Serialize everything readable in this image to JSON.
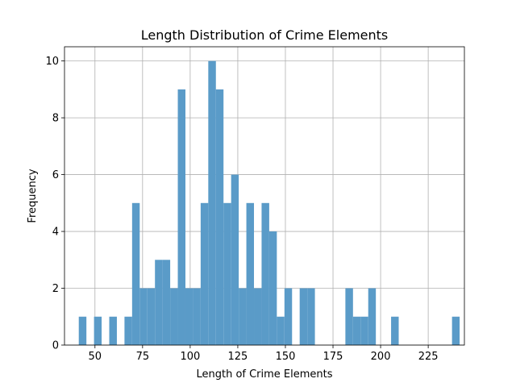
{
  "chart_data": {
    "type": "bar",
    "title": "Length Distribution of Crime Elements",
    "xlabel": "Length of Crime Elements",
    "ylabel": "Frequency",
    "xlim": [
      34,
      244
    ],
    "ylim": [
      0,
      10.5
    ],
    "xticks": [
      50,
      75,
      100,
      125,
      150,
      175,
      200,
      225
    ],
    "yticks": [
      0,
      2,
      4,
      6,
      8,
      10
    ],
    "grid": true,
    "bar_color": "#5a9bc8",
    "bin_width": 4,
    "bins": [
      {
        "x0": 41.5,
        "x1": 45.5,
        "count": 1
      },
      {
        "x0": 49.5,
        "x1": 53.5,
        "count": 1
      },
      {
        "x0": 57.5,
        "x1": 61.5,
        "count": 1
      },
      {
        "x0": 65.5,
        "x1": 69.5,
        "count": 1
      },
      {
        "x0": 69.5,
        "x1": 73.5,
        "count": 5
      },
      {
        "x0": 73.5,
        "x1": 77.5,
        "count": 2
      },
      {
        "x0": 77.5,
        "x1": 81.5,
        "count": 2
      },
      {
        "x0": 81.5,
        "x1": 85.5,
        "count": 3
      },
      {
        "x0": 85.5,
        "x1": 89.5,
        "count": 3
      },
      {
        "x0": 89.5,
        "x1": 93.5,
        "count": 2
      },
      {
        "x0": 93.5,
        "x1": 97.5,
        "count": 9
      },
      {
        "x0": 97.5,
        "x1": 101.5,
        "count": 2
      },
      {
        "x0": 101.5,
        "x1": 105.5,
        "count": 2
      },
      {
        "x0": 105.5,
        "x1": 109.5,
        "count": 5
      },
      {
        "x0": 109.5,
        "x1": 113.5,
        "count": 10
      },
      {
        "x0": 113.5,
        "x1": 117.5,
        "count": 9
      },
      {
        "x0": 117.5,
        "x1": 121.5,
        "count": 5
      },
      {
        "x0": 121.5,
        "x1": 125.5,
        "count": 6
      },
      {
        "x0": 125.5,
        "x1": 129.5,
        "count": 2
      },
      {
        "x0": 129.5,
        "x1": 133.5,
        "count": 5
      },
      {
        "x0": 133.5,
        "x1": 137.5,
        "count": 2
      },
      {
        "x0": 137.5,
        "x1": 141.5,
        "count": 5
      },
      {
        "x0": 141.5,
        "x1": 145.5,
        "count": 4
      },
      {
        "x0": 145.5,
        "x1": 149.5,
        "count": 1
      },
      {
        "x0": 149.5,
        "x1": 153.5,
        "count": 2
      },
      {
        "x0": 153.5,
        "x1": 157.5,
        "count": 0
      },
      {
        "x0": 157.5,
        "x1": 161.5,
        "count": 2
      },
      {
        "x0": 161.5,
        "x1": 165.5,
        "count": 2
      },
      {
        "x0": 181.5,
        "x1": 185.5,
        "count": 2
      },
      {
        "x0": 185.5,
        "x1": 189.5,
        "count": 1
      },
      {
        "x0": 189.5,
        "x1": 193.5,
        "count": 1
      },
      {
        "x0": 193.5,
        "x1": 197.5,
        "count": 2
      },
      {
        "x0": 205.5,
        "x1": 209.5,
        "count": 1
      },
      {
        "x0": 237.5,
        "x1": 241.5,
        "count": 1
      }
    ]
  }
}
